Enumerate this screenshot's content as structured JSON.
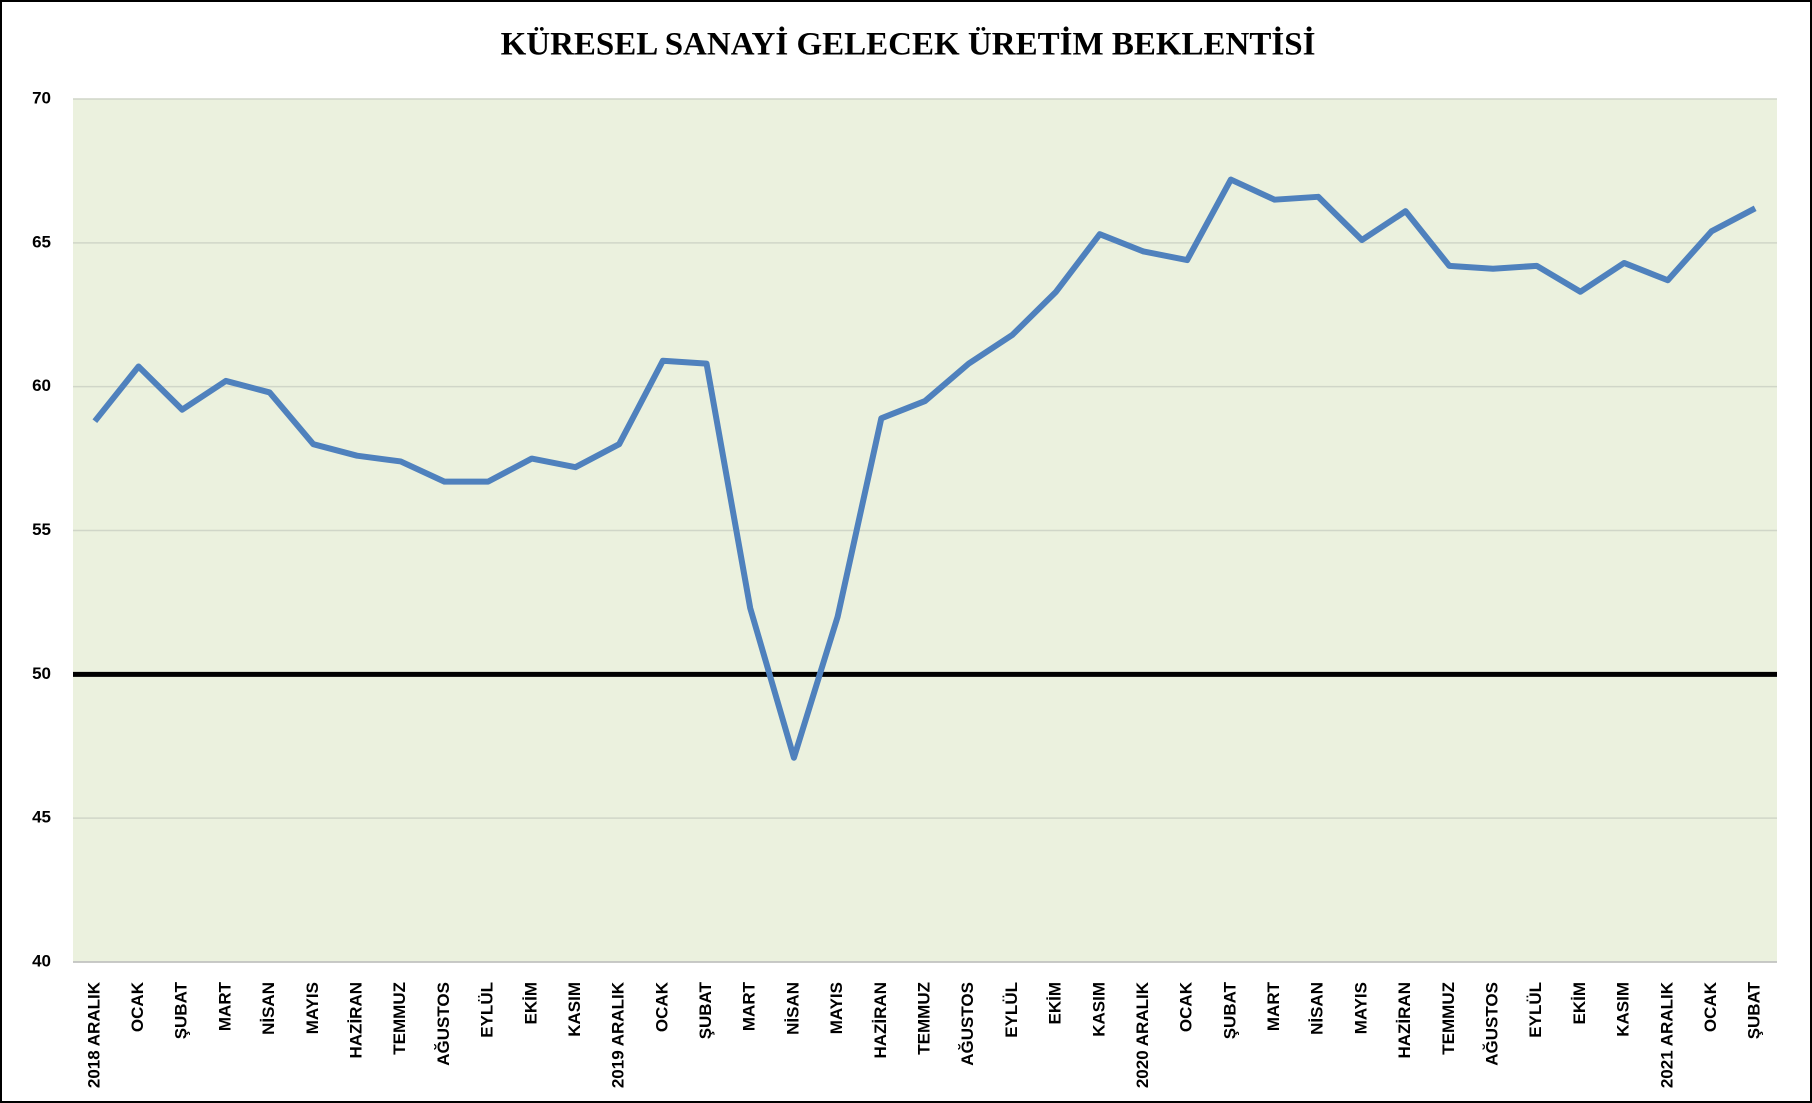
{
  "chart_data": {
    "type": "line",
    "title": "KÜRESEL SANAYİ GELECEK ÜRETİM BEKLENTİSİ",
    "categories": [
      "2018 ARALIK",
      "OCAK",
      "ŞUBAT",
      "MART",
      "NİSAN",
      "MAYIS",
      "HAZİRAN",
      "TEMMUZ",
      "AĞUSTOS",
      "EYLÜL",
      "EKİM",
      "KASIM",
      "2019 ARALIK",
      "OCAK",
      "ŞUBAT",
      "MART",
      "NİSAN",
      "MAYIS",
      "HAZİRAN",
      "TEMMUZ",
      "AĞUSTOS",
      "EYLÜL",
      "EKİM",
      "KASIM",
      "2020 ARALIK",
      "OCAK",
      "ŞUBAT",
      "MART",
      "NİSAN",
      "MAYIS",
      "HAZİRAN",
      "TEMMUZ",
      "AĞUSTOS",
      "EYLÜL",
      "EKİM",
      "KASIM",
      "2021 ARALIK",
      "OCAK",
      "ŞUBAT"
    ],
    "series": [
      {
        "color": "#4f81bd",
        "values": [
          58.8,
          60.7,
          59.2,
          60.2,
          59.8,
          58.0,
          57.6,
          57.4,
          56.7,
          56.7,
          57.5,
          57.2,
          58.0,
          60.9,
          60.8,
          52.3,
          47.1,
          52.0,
          58.9,
          59.5,
          60.8,
          61.8,
          63.3,
          65.3,
          64.7,
          64.4,
          67.2,
          66.5,
          66.6,
          65.1,
          66.1,
          64.2,
          64.1,
          64.2,
          63.3,
          64.3,
          63.7,
          65.4,
          66.2
        ]
      }
    ],
    "ylim": [
      40,
      70
    ],
    "yticks": [
      40,
      45,
      50,
      55,
      60,
      65,
      70
    ],
    "grid": true,
    "reference_line": 50,
    "reference_color": "#000000",
    "plot_background": "#ebf1de"
  }
}
